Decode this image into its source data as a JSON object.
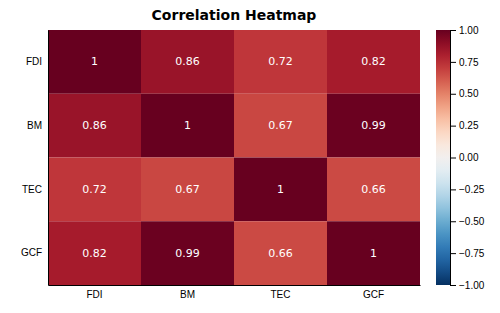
{
  "chart_data": {
    "type": "heatmap",
    "title": "Correlation Heatmap",
    "categories": [
      "FDI",
      "BM",
      "TEC",
      "GCF"
    ],
    "values": [
      [
        1.0,
        0.86,
        0.72,
        0.82
      ],
      [
        0.86,
        1.0,
        0.67,
        0.99
      ],
      [
        0.72,
        0.67,
        1.0,
        0.66
      ],
      [
        0.82,
        0.99,
        0.66,
        1.0
      ]
    ],
    "data_labels": true,
    "colorbar_range": [
      -1.0,
      1.0
    ],
    "colorbar_ticks": [
      {
        "value": 1.0,
        "label": "1.00"
      },
      0.75,
      {
        "value": 0.5,
        "label": "0.50"
      },
      0.25,
      {
        "value": 0.0,
        "label": "0.00"
      },
      {
        "value": -0.25,
        "label": "−0.25"
      },
      {
        "value": -0.5,
        "label": "−0.50"
      },
      {
        "value": -0.75,
        "label": "−0.75"
      },
      {
        "value": -1.0,
        "label": "−1.00"
      }
    ]
  }
}
